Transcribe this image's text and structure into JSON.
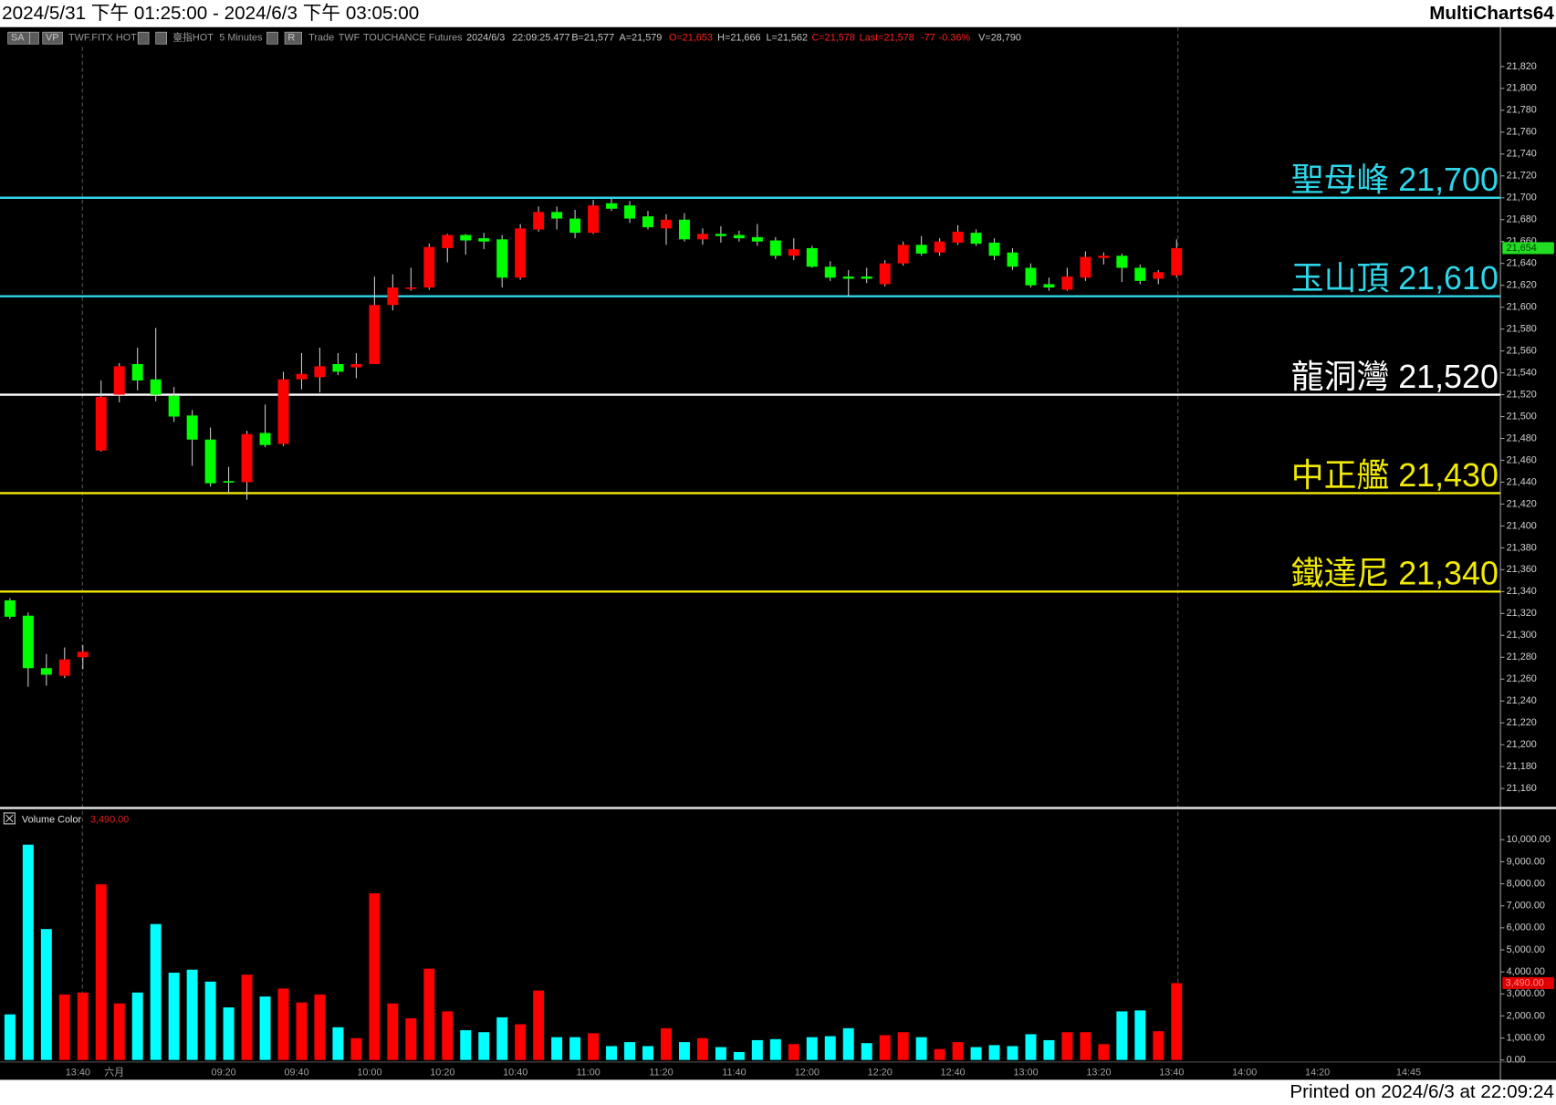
{
  "header": {
    "title": "2024/5/31 下午 01:25:00 - 2024/6/3 下午 03:05:00",
    "app": "MultiCharts64",
    "toolbar": [
      "SA",
      "VP",
      "TWF.FITX HOT",
      "臺指HOT",
      "5 Minutes",
      "R",
      "Trade",
      "TWF",
      "TOUCHANCE",
      "Futures",
      "2024/6/3",
      "22:09:25.477",
      "B=21,577",
      "A=21,579",
      "O=21,653",
      "H=21,666",
      "L=21,562",
      "C=21,578",
      "Last=21,578",
      "-77",
      "-0.36%",
      "V=28,790"
    ]
  },
  "footer": "Printed on 2024/6/3 at 22:09:24",
  "chart_data": [
    {
      "type": "candlestick",
      "up_color": "#ff0000",
      "down_color": "#00ff00",
      "open": [
        21332,
        21318,
        21270,
        21263,
        21280,
        21469,
        21520,
        21548,
        21534,
        21519,
        21501,
        21479,
        21441,
        21440,
        21485,
        21475,
        21534,
        21536,
        21548,
        21545,
        21548,
        21602,
        21617,
        21618,
        21654,
        21666,
        21663,
        21662,
        21627,
        21671,
        21687,
        21681,
        21668,
        21695,
        21693,
        21683,
        21672,
        21680,
        21662,
        21667,
        21666,
        21664,
        21661,
        21647,
        21654,
        21637,
        21628,
        21628,
        21621,
        21640,
        21657,
        21650,
        21659,
        21668,
        21659,
        21650,
        21636,
        21621,
        21616,
        21627,
        21645,
        21647,
        21636,
        21626,
        21629,
        null,
        null,
        null,
        null,
        null,
        null,
        null,
        null,
        null,
        null,
        null,
        null,
        null
      ],
      "high": [
        21334,
        21321,
        21283,
        21289,
        21291,
        21533,
        21549,
        21563,
        21581,
        21527,
        21506,
        21490,
        21454,
        21487,
        21511,
        21541,
        21558,
        21563,
        21558,
        21558,
        21628,
        21630,
        21636,
        21658,
        21667,
        21667,
        21668,
        21666,
        21676,
        21692,
        21692,
        21689,
        21698,
        21699,
        21697,
        21688,
        21685,
        21686,
        21672,
        21674,
        21670,
        21676,
        21664,
        21663,
        21656,
        21642,
        21634,
        21636,
        21643,
        21660,
        21665,
        21663,
        21675,
        21671,
        21663,
        21654,
        21640,
        21627,
        21636,
        21651,
        21650,
        21649,
        21639,
        21634,
        21662,
        null,
        null,
        null,
        null,
        null,
        null,
        null,
        null,
        null,
        null,
        null,
        null,
        null
      ],
      "low": [
        21315,
        21253,
        21254,
        21261,
        21269,
        21468,
        21513,
        21524,
        21514,
        21495,
        21455,
        21436,
        21430,
        21424,
        21472,
        21473,
        21525,
        21522,
        21538,
        21535,
        21548,
        21597,
        21615,
        21616,
        21641,
        21648,
        21653,
        21618,
        21625,
        21669,
        21671,
        21663,
        21667,
        21688,
        21677,
        21671,
        21657,
        21660,
        21657,
        21659,
        21660,
        21656,
        21644,
        21643,
        21636,
        21624,
        21610,
        21622,
        21619,
        21638,
        21647,
        21647,
        21657,
        21656,
        21643,
        21634,
        21618,
        21615,
        21615,
        21624,
        21639,
        21623,
        21621,
        21621,
        21627,
        null,
        null,
        null,
        null,
        null,
        null,
        null,
        null,
        null,
        null,
        null,
        null,
        null
      ],
      "close": [
        21317,
        21270,
        21264,
        21278,
        21285,
        21518,
        21546,
        21533,
        21520,
        21500,
        21479,
        21439,
        21440,
        21484,
        21474,
        21534,
        21539,
        21546,
        21541,
        21548,
        21602,
        21618,
        21618,
        21655,
        21666,
        21661,
        21660,
        21627,
        21672,
        21687,
        21681,
        21668,
        21693,
        21690,
        21681,
        21673,
        21680,
        21662,
        21667,
        21665,
        21663,
        21660,
        21647,
        21653,
        21637,
        21627,
        21626,
        21626,
        21640,
        21657,
        21649,
        21660,
        21669,
        21658,
        21647,
        21637,
        21620,
        21618,
        21628,
        21646,
        21647,
        21636,
        21624,
        21632,
        21654,
        null,
        null,
        null,
        null,
        null,
        null,
        null,
        null,
        null,
        null,
        null,
        null,
        null
      ],
      "ylim": [
        21144,
        21856
      ],
      "yticks": [
        {
          "value": 21160,
          "label": "21,160"
        },
        {
          "value": 21180,
          "label": "21,180"
        },
        {
          "value": 21200,
          "label": "21,200"
        },
        {
          "value": 21220,
          "label": "21,220"
        },
        {
          "value": 21240,
          "label": "21,240"
        },
        {
          "value": 21260,
          "label": "21,260"
        },
        {
          "value": 21280,
          "label": "21,280"
        },
        {
          "value": 21300,
          "label": "21,300"
        },
        {
          "value": 21320,
          "label": "21,320"
        },
        {
          "value": 21340,
          "label": "21,340"
        },
        {
          "value": 21360,
          "label": "21,360"
        },
        {
          "value": 21380,
          "label": "21,380"
        },
        {
          "value": 21400,
          "label": "21,400"
        },
        {
          "value": 21420,
          "label": "21,420"
        },
        {
          "value": 21440,
          "label": "21,440"
        },
        {
          "value": 21460,
          "label": "21,460"
        },
        {
          "value": 21480,
          "label": "21,480"
        },
        {
          "value": 21500,
          "label": "21,500"
        },
        {
          "value": 21520,
          "label": "21,520"
        },
        {
          "value": 21540,
          "label": "21,540"
        },
        {
          "value": 21560,
          "label": "21,560"
        },
        {
          "value": 21580,
          "label": "21,580"
        },
        {
          "value": 21600,
          "label": "21,600"
        },
        {
          "value": 21620,
          "label": "21,620"
        },
        {
          "value": 21640,
          "label": "21,640"
        },
        {
          "value": 21660,
          "label": "21,660"
        },
        {
          "value": 21680,
          "label": "21,680"
        },
        {
          "value": 21700,
          "label": "21,700"
        },
        {
          "value": 21720,
          "label": "21,720"
        },
        {
          "value": 21740,
          "label": "21,740"
        },
        {
          "value": 21760,
          "label": "21,760"
        },
        {
          "value": 21780,
          "label": "21,780"
        },
        {
          "value": 21800,
          "label": "21,800"
        },
        {
          "value": 21820,
          "label": "21,820"
        }
      ],
      "last_price": {
        "value": 21654,
        "label": "21,654",
        "color": "#22dd22"
      },
      "levels": [
        {
          "name": "聖母峰",
          "value": 21700,
          "value_label": "21,700",
          "color": "#2fd6ea"
        },
        {
          "name": "玉山頂",
          "value": 21610,
          "value_label": "21,610",
          "color": "#2fd6ea"
        },
        {
          "name": "龍洞灣",
          "value": 21520,
          "value_label": "21,520",
          "color": "#ffffff"
        },
        {
          "name": "中正艦",
          "value": 21430,
          "value_label": "21,430",
          "color": "#f2ea00"
        },
        {
          "name": "鐵達尼",
          "value": 21340,
          "value_label": "21,340",
          "color": "#f2ea00"
        }
      ]
    },
    {
      "type": "bar",
      "title": "Volume Color",
      "up_color": "#ff0000",
      "down_color": "#00ffff",
      "categories": [
        null,
        null,
        null,
        null,
        "13:40",
        null,
        "六月",
        null,
        null,
        null,
        null,
        null,
        "09:20",
        null,
        null,
        null,
        "09:40",
        null,
        null,
        null,
        "10:00",
        null,
        null,
        null,
        "10:20",
        null,
        null,
        null,
        "10:40",
        null,
        null,
        null,
        "11:00",
        null,
        null,
        null,
        "11:20",
        null,
        null,
        null,
        "11:40",
        null,
        null,
        null,
        "12:00",
        null,
        null,
        null,
        "12:20",
        null,
        null,
        null,
        "12:40",
        null,
        null,
        null,
        "13:00",
        null,
        null,
        null,
        "13:20",
        null,
        null,
        null,
        "13:40",
        null,
        null,
        null,
        "14:00",
        null,
        null,
        null,
        "14:20",
        null,
        null,
        null,
        null,
        "14:45"
      ],
      "values": [
        2072,
        9776,
        5946,
        2973,
        3063,
        7974,
        2568,
        3063,
        6172,
        3964,
        4100,
        3559,
        2388,
        3874,
        2883,
        3244,
        2613,
        2973,
        1487,
        991,
        7568,
        2568,
        1892,
        4145,
        2207,
        1352,
        1261,
        1937,
        1622,
        3154,
        1036,
        1036,
        1216,
        631,
        811,
        631,
        1442,
        811,
        991,
        586,
        360,
        901,
        946,
        721,
        1036,
        1081,
        1442,
        766,
        1126,
        1261,
        1036,
        496,
        811,
        586,
        676,
        631,
        1171,
        901,
        1261,
        1261,
        721,
        2207,
        2252,
        1306,
        3490,
        null,
        null,
        null,
        null,
        null,
        null,
        null,
        null,
        null,
        null,
        null,
        null,
        null
      ],
      "ylim": [
        0,
        10720
      ],
      "yticks": [
        {
          "value": 0,
          "label": "0.00"
        },
        {
          "value": 1000,
          "label": "1,000.00"
        },
        {
          "value": 2000,
          "label": "2,000.00"
        },
        {
          "value": 3000,
          "label": "3,000.00"
        },
        {
          "value": 4000,
          "label": "4,000.00"
        },
        {
          "value": 5000,
          "label": "5,000.00"
        },
        {
          "value": 6000,
          "label": "6,000.00"
        },
        {
          "value": 7000,
          "label": "7,000.00"
        },
        {
          "value": 8000,
          "label": "8,000.00"
        },
        {
          "value": 9000,
          "label": "9,000.00"
        },
        {
          "value": 10000,
          "label": "10,000.00"
        }
      ],
      "last_value": {
        "value": 3490,
        "label": "3,490.00",
        "color": "#e00000"
      }
    }
  ]
}
